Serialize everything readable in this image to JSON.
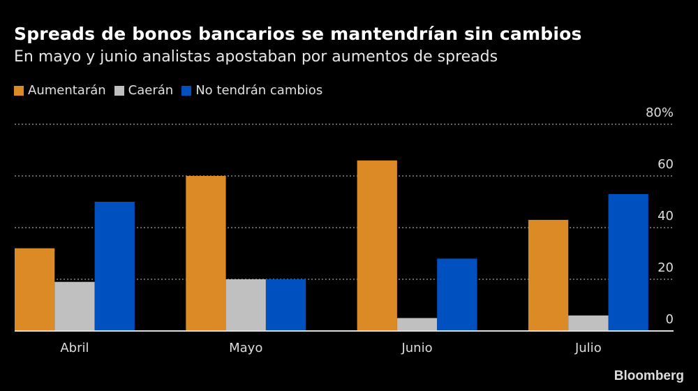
{
  "chart_data": {
    "type": "bar",
    "title": "Spreads de bonos bancarios se mantendrían sin cambios",
    "subtitle": "En mayo y junio analistas apostaban por aumentos de spreads",
    "categories": [
      "Abril",
      "Mayo",
      "Junio",
      "Julio"
    ],
    "series": [
      {
        "name": "Aumentarán",
        "color": "#dc8a26",
        "values": [
          32,
          60,
          66,
          43
        ]
      },
      {
        "name": "Caerán",
        "color": "#c0c0c0",
        "values": [
          19,
          20,
          5,
          6
        ]
      },
      {
        "name": "No tendrán cambios",
        "color": "#0050c0",
        "values": [
          50,
          20,
          28,
          53
        ]
      }
    ],
    "ylim": [
      0,
      80
    ],
    "yticks": [
      0,
      20,
      40,
      60,
      80
    ],
    "ytick_labels": [
      "0",
      "20",
      "40",
      "60",
      "80%"
    ],
    "y_axis_side": "right",
    "grid": true,
    "legend": "top-left",
    "xlabel": "",
    "ylabel": ""
  },
  "source_brand": "Bloomberg"
}
